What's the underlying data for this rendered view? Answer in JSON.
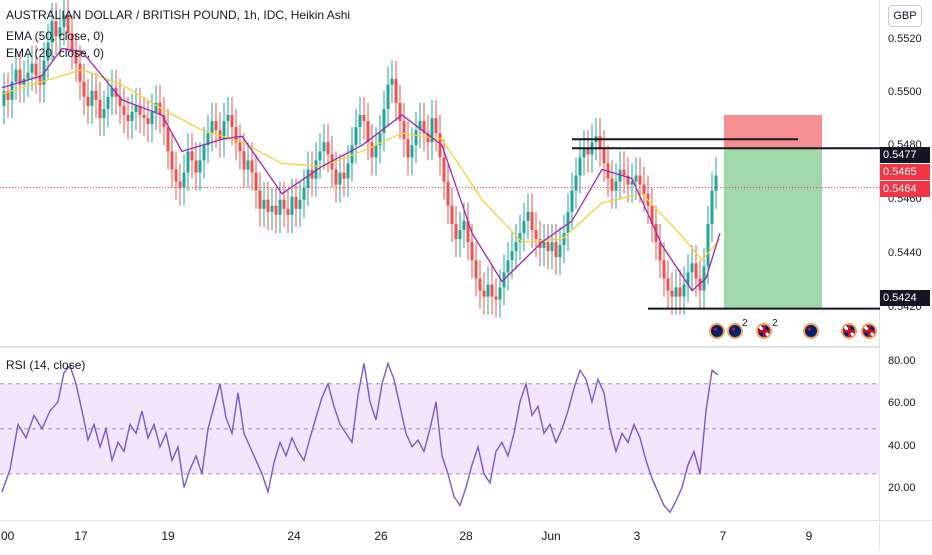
{
  "legend": {
    "title": "AUSTRALIAN DOLLAR / BRITISH POUND, 1h, IDC, Heikin Ashi",
    "ema50": "EMA (50, close, 0)",
    "ema20": "EMA (20, close, 0)",
    "rsi": "RSI (14, close)"
  },
  "currency": "GBP",
  "price_axis": {
    "ticks": [
      "0.5520",
      "0.5500",
      "0.5480",
      "0.5460",
      "0.5440",
      "0.5420"
    ],
    "tags": [
      {
        "label": "0.5477",
        "style": "black"
      },
      {
        "label": "0.5465",
        "style": "red"
      },
      {
        "label": "0.5464",
        "style": "red"
      },
      {
        "label": "0.5424",
        "style": "black"
      }
    ]
  },
  "rsi_axis": {
    "ticks": [
      "80.00",
      "60.00",
      "40.00",
      "20.00"
    ]
  },
  "time_axis": {
    "labels": [
      ":00",
      "17",
      "19",
      "24",
      "26",
      "28",
      "Jun",
      "3",
      "7",
      "9"
    ]
  },
  "event_flags": [
    {
      "icon": "au-flag-icon",
      "count": ""
    },
    {
      "icon": "au-flag-icon",
      "count": "2"
    },
    {
      "icon": "gb-flag-icon",
      "count": "2"
    },
    {
      "icon": "au-flag-icon",
      "count": ""
    },
    {
      "icon": "gb-flag-icon",
      "count": ""
    },
    {
      "icon": "gb-flag-icon",
      "count": ""
    }
  ],
  "colors": {
    "up": "#26a69a",
    "down": "#ef5350",
    "ema50": "#f5d33c",
    "ema20": "#9c27b0",
    "rsi": "#7e57c2",
    "rsi_band": "#f3e5fc",
    "target_zone": "#8fd19e",
    "stop_zone": "#f47c7c"
  },
  "chart_data": {
    "type": "line",
    "title": "AUSTRALIAN DOLLAR / BRITISH POUND, 1h, IDC, Heikin Ashi",
    "price_range": [
      0.5412,
      0.5526
    ],
    "rsi_range": [
      10,
      85
    ],
    "rsi_band": [
      30,
      70
    ],
    "current_price": 0.5464,
    "position": {
      "entry": 0.5477,
      "stop": 0.5488,
      "target": 0.5424
    },
    "horizontal_lines": [
      0.548,
      0.5477,
      0.5424
    ],
    "price_path": [
      [
        0,
        0.5491
      ],
      [
        4,
        0.5496
      ],
      [
        8,
        0.5493
      ],
      [
        12,
        0.5499
      ],
      [
        16,
        0.5503
      ],
      [
        20,
        0.5498
      ],
      [
        24,
        0.55
      ],
      [
        28,
        0.5502
      ],
      [
        32,
        0.5505
      ],
      [
        36,
        0.5501
      ],
      [
        40,
        0.5498
      ],
      [
        44,
        0.5506
      ],
      [
        48,
        0.5512
      ],
      [
        52,
        0.5519
      ],
      [
        56,
        0.5514
      ],
      [
        60,
        0.5517
      ],
      [
        64,
        0.5521
      ],
      [
        68,
        0.5515
      ],
      [
        72,
        0.5509
      ],
      [
        76,
        0.5505
      ],
      [
        80,
        0.5499
      ],
      [
        84,
        0.5494
      ],
      [
        88,
        0.5491
      ],
      [
        92,
        0.5496
      ],
      [
        96,
        0.5493
      ],
      [
        100,
        0.5487
      ],
      [
        104,
        0.549
      ],
      [
        108,
        0.5494
      ],
      [
        112,
        0.5497
      ],
      [
        116,
        0.5494
      ],
      [
        120,
        0.5491
      ],
      [
        124,
        0.5488
      ],
      [
        128,
        0.5486
      ],
      [
        132,
        0.5489
      ],
      [
        136,
        0.5491
      ],
      [
        140,
        0.5488
      ],
      [
        144,
        0.5487
      ],
      [
        148,
        0.5485
      ],
      [
        152,
        0.5489
      ],
      [
        156,
        0.5492
      ],
      [
        160,
        0.5488
      ],
      [
        164,
        0.5484
      ],
      [
        168,
        0.5476
      ],
      [
        172,
        0.547
      ],
      [
        176,
        0.5466
      ],
      [
        180,
        0.5464
      ],
      [
        184,
        0.5469
      ],
      [
        188,
        0.5476
      ],
      [
        192,
        0.5473
      ],
      [
        196,
        0.5469
      ],
      [
        200,
        0.5473
      ],
      [
        204,
        0.5478
      ],
      [
        208,
        0.5482
      ],
      [
        212,
        0.5486
      ],
      [
        216,
        0.5483
      ],
      [
        220,
        0.548
      ],
      [
        224,
        0.5486
      ],
      [
        228,
        0.5488
      ],
      [
        232,
        0.5484
      ],
      [
        236,
        0.5479
      ],
      [
        240,
        0.5476
      ],
      [
        244,
        0.547
      ],
      [
        248,
        0.5473
      ],
      [
        252,
        0.5469
      ],
      [
        256,
        0.5463
      ],
      [
        260,
        0.5457
      ],
      [
        264,
        0.546
      ],
      [
        268,
        0.5456
      ],
      [
        272,
        0.5458
      ],
      [
        276,
        0.5455
      ],
      [
        280,
        0.546
      ],
      [
        284,
        0.5457
      ],
      [
        288,
        0.5455
      ],
      [
        292,
        0.5461
      ],
      [
        296,
        0.5457
      ],
      [
        300,
        0.546
      ],
      [
        304,
        0.5464
      ],
      [
        308,
        0.547
      ],
      [
        312,
        0.5467
      ],
      [
        316,
        0.5473
      ],
      [
        320,
        0.5476
      ],
      [
        324,
        0.5479
      ],
      [
        328,
        0.5475
      ],
      [
        332,
        0.547
      ],
      [
        336,
        0.5465
      ],
      [
        340,
        0.5469
      ],
      [
        344,
        0.5467
      ],
      [
        348,
        0.5472
      ],
      [
        352,
        0.5478
      ],
      [
        356,
        0.5484
      ],
      [
        360,
        0.5488
      ],
      [
        364,
        0.5486
      ],
      [
        368,
        0.5479
      ],
      [
        372,
        0.5474
      ],
      [
        376,
        0.5478
      ],
      [
        380,
        0.5482
      ],
      [
        384,
        0.549
      ],
      [
        388,
        0.5498
      ],
      [
        392,
        0.55
      ],
      [
        396,
        0.5492
      ],
      [
        400,
        0.5486
      ],
      [
        404,
        0.548
      ],
      [
        408,
        0.5474
      ],
      [
        412,
        0.5478
      ],
      [
        416,
        0.5483
      ],
      [
        420,
        0.5486
      ],
      [
        424,
        0.5482
      ],
      [
        428,
        0.5479
      ],
      [
        432,
        0.5487
      ],
      [
        436,
        0.5482
      ],
      [
        440,
        0.5474
      ],
      [
        444,
        0.5466
      ],
      [
        448,
        0.5458
      ],
      [
        452,
        0.5452
      ],
      [
        456,
        0.5447
      ],
      [
        460,
        0.545
      ],
      [
        464,
        0.5453
      ],
      [
        468,
        0.5446
      ],
      [
        472,
        0.544
      ],
      [
        476,
        0.5434
      ],
      [
        480,
        0.543
      ],
      [
        484,
        0.5428
      ],
      [
        488,
        0.5432
      ],
      [
        492,
        0.5428
      ],
      [
        496,
        0.5427
      ],
      [
        500,
        0.5431
      ],
      [
        504,
        0.5436
      ],
      [
        508,
        0.544
      ],
      [
        512,
        0.5443
      ],
      [
        516,
        0.5446
      ],
      [
        520,
        0.5449
      ],
      [
        524,
        0.5453
      ],
      [
        528,
        0.5456
      ],
      [
        532,
        0.545
      ],
      [
        536,
        0.5447
      ],
      [
        540,
        0.5444
      ],
      [
        544,
        0.5446
      ],
      [
        548,
        0.5443
      ],
      [
        552,
        0.5446
      ],
      [
        556,
        0.5441
      ],
      [
        560,
        0.5445
      ],
      [
        564,
        0.5449
      ],
      [
        568,
        0.5456
      ],
      [
        572,
        0.5463
      ],
      [
        576,
        0.5468
      ],
      [
        580,
        0.5474
      ],
      [
        584,
        0.5477
      ],
      [
        588,
        0.5475
      ],
      [
        592,
        0.5479
      ],
      [
        596,
        0.5481
      ],
      [
        600,
        0.5477
      ],
      [
        604,
        0.5472
      ],
      [
        608,
        0.5467
      ],
      [
        612,
        0.5463
      ],
      [
        616,
        0.5466
      ],
      [
        620,
        0.547
      ],
      [
        624,
        0.5468
      ],
      [
        628,
        0.5465
      ],
      [
        632,
        0.5466
      ],
      [
        636,
        0.5468
      ],
      [
        640,
        0.5465
      ],
      [
        644,
        0.5462
      ],
      [
        648,
        0.5458
      ],
      [
        652,
        0.5452
      ],
      [
        656,
        0.5446
      ],
      [
        660,
        0.544
      ],
      [
        664,
        0.5434
      ],
      [
        668,
        0.543
      ],
      [
        672,
        0.5428
      ],
      [
        676,
        0.5431
      ],
      [
        680,
        0.5428
      ],
      [
        684,
        0.5432
      ],
      [
        688,
        0.5436
      ],
      [
        692,
        0.5439
      ],
      [
        696,
        0.5434
      ],
      [
        700,
        0.543
      ],
      [
        704,
        0.5438
      ],
      [
        708,
        0.5452
      ],
      [
        712,
        0.5463
      ],
      [
        716,
        0.5468
      ]
    ],
    "ema50": [
      [
        0,
        0.5495
      ],
      [
        40,
        0.5499
      ],
      [
        80,
        0.5503
      ],
      [
        120,
        0.5498
      ],
      [
        160,
        0.549
      ],
      [
        200,
        0.5483
      ],
      [
        240,
        0.5479
      ],
      [
        280,
        0.5472
      ],
      [
        320,
        0.5471
      ],
      [
        360,
        0.5476
      ],
      [
        400,
        0.5482
      ],
      [
        440,
        0.548
      ],
      [
        480,
        0.546
      ],
      [
        520,
        0.5446
      ],
      [
        560,
        0.5447
      ],
      [
        600,
        0.5459
      ],
      [
        640,
        0.5462
      ],
      [
        680,
        0.5448
      ],
      [
        700,
        0.544
      ],
      [
        718,
        0.5447
      ]
    ],
    "ema20": [
      [
        0,
        0.5497
      ],
      [
        40,
        0.5501
      ],
      [
        60,
        0.551
      ],
      [
        80,
        0.5509
      ],
      [
        120,
        0.5493
      ],
      [
        160,
        0.5488
      ],
      [
        180,
        0.5476
      ],
      [
        220,
        0.548
      ],
      [
        240,
        0.5481
      ],
      [
        280,
        0.5462
      ],
      [
        320,
        0.5471
      ],
      [
        360,
        0.5478
      ],
      [
        400,
        0.5488
      ],
      [
        440,
        0.5478
      ],
      [
        470,
        0.5449
      ],
      [
        500,
        0.5433
      ],
      [
        540,
        0.5446
      ],
      [
        570,
        0.5453
      ],
      [
        600,
        0.547
      ],
      [
        630,
        0.5467
      ],
      [
        660,
        0.5445
      ],
      [
        690,
        0.543
      ],
      [
        704,
        0.5434
      ],
      [
        718,
        0.5449
      ]
    ],
    "rsi": [
      [
        0,
        22
      ],
      [
        8,
        32
      ],
      [
        16,
        52
      ],
      [
        24,
        46
      ],
      [
        32,
        56
      ],
      [
        40,
        50
      ],
      [
        48,
        58
      ],
      [
        56,
        62
      ],
      [
        62,
        75
      ],
      [
        68,
        78
      ],
      [
        74,
        70
      ],
      [
        80,
        58
      ],
      [
        86,
        45
      ],
      [
        92,
        52
      ],
      [
        98,
        42
      ],
      [
        104,
        50
      ],
      [
        110,
        36
      ],
      [
        116,
        44
      ],
      [
        122,
        40
      ],
      [
        128,
        52
      ],
      [
        134,
        48
      ],
      [
        140,
        58
      ],
      [
        146,
        46
      ],
      [
        152,
        52
      ],
      [
        158,
        42
      ],
      [
        164,
        48
      ],
      [
        170,
        36
      ],
      [
        176,
        42
      ],
      [
        182,
        24
      ],
      [
        188,
        32
      ],
      [
        194,
        38
      ],
      [
        200,
        30
      ],
      [
        206,
        50
      ],
      [
        212,
        60
      ],
      [
        218,
        70
      ],
      [
        224,
        55
      ],
      [
        230,
        48
      ],
      [
        236,
        66
      ],
      [
        242,
        48
      ],
      [
        248,
        42
      ],
      [
        254,
        36
      ],
      [
        260,
        30
      ],
      [
        266,
        22
      ],
      [
        272,
        35
      ],
      [
        278,
        44
      ],
      [
        284,
        38
      ],
      [
        290,
        46
      ],
      [
        296,
        40
      ],
      [
        302,
        36
      ],
      [
        308,
        46
      ],
      [
        314,
        55
      ],
      [
        320,
        64
      ],
      [
        326,
        70
      ],
      [
        332,
        60
      ],
      [
        338,
        52
      ],
      [
        344,
        48
      ],
      [
        350,
        44
      ],
      [
        356,
        65
      ],
      [
        362,
        79
      ],
      [
        368,
        62
      ],
      [
        374,
        54
      ],
      [
        380,
        70
      ],
      [
        386,
        79
      ],
      [
        392,
        72
      ],
      [
        398,
        60
      ],
      [
        404,
        48
      ],
      [
        410,
        42
      ],
      [
        416,
        45
      ],
      [
        422,
        40
      ],
      [
        428,
        50
      ],
      [
        434,
        62
      ],
      [
        440,
        38
      ],
      [
        446,
        30
      ],
      [
        452,
        20
      ],
      [
        458,
        16
      ],
      [
        464,
        24
      ],
      [
        470,
        34
      ],
      [
        476,
        42
      ],
      [
        482,
        30
      ],
      [
        488,
        26
      ],
      [
        494,
        40
      ],
      [
        500,
        44
      ],
      [
        506,
        38
      ],
      [
        512,
        48
      ],
      [
        518,
        62
      ],
      [
        524,
        70
      ],
      [
        530,
        56
      ],
      [
        536,
        60
      ],
      [
        542,
        48
      ],
      [
        548,
        52
      ],
      [
        554,
        44
      ],
      [
        560,
        50
      ],
      [
        566,
        58
      ],
      [
        572,
        68
      ],
      [
        578,
        76
      ],
      [
        584,
        72
      ],
      [
        590,
        62
      ],
      [
        596,
        72
      ],
      [
        602,
        66
      ],
      [
        608,
        50
      ],
      [
        614,
        40
      ],
      [
        620,
        48
      ],
      [
        626,
        44
      ],
      [
        632,
        52
      ],
      [
        638,
        46
      ],
      [
        644,
        36
      ],
      [
        650,
        28
      ],
      [
        656,
        22
      ],
      [
        662,
        16
      ],
      [
        668,
        13
      ],
      [
        674,
        18
      ],
      [
        680,
        24
      ],
      [
        686,
        34
      ],
      [
        692,
        40
      ],
      [
        698,
        30
      ],
      [
        704,
        58
      ],
      [
        710,
        76
      ],
      [
        716,
        74
      ]
    ]
  }
}
